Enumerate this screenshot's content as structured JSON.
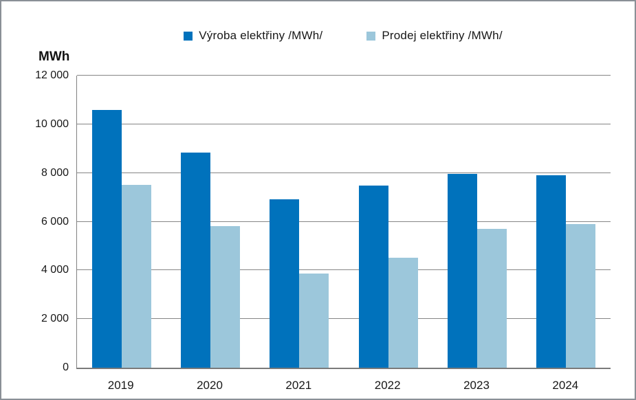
{
  "colors": {
    "series_vyroba": "#0072BC",
    "series_prodej": "#9CC7DB",
    "gridline": "#858585",
    "frame_border": "#8A9096",
    "text": "#171717"
  },
  "y_axis_unit": "MWh",
  "legend": {
    "items": [
      {
        "id": "vyroba",
        "label": "Výroba elektřiny /MWh/",
        "color": "#0072BC"
      },
      {
        "id": "prodej",
        "label": "Prodej elektřiny /MWh/",
        "color": "#9CC7DB"
      }
    ]
  },
  "chart_data": {
    "type": "bar",
    "title": "",
    "categories": [
      "2019",
      "2020",
      "2021",
      "2022",
      "2023",
      "2024"
    ],
    "series": [
      {
        "name": "Výroba elektřiny /MWh/",
        "color": "#0072BC",
        "values": [
          10590,
          8840,
          6930,
          7480,
          7950,
          7900
        ]
      },
      {
        "name": "Prodej elektřiny /MWh/",
        "color": "#9CC7DB",
        "values": [
          7520,
          5830,
          3870,
          4510,
          5690,
          5890
        ]
      }
    ],
    "xlabel": "",
    "ylabel": "MWh",
    "ylim": [
      0,
      12000
    ],
    "ytick_step": 2000,
    "ytick_labels": [
      "0",
      "2 000",
      "4 000",
      "6 000",
      "8 000",
      "10 000",
      "12 000"
    ],
    "grid": true,
    "legend_position": "top-center"
  }
}
